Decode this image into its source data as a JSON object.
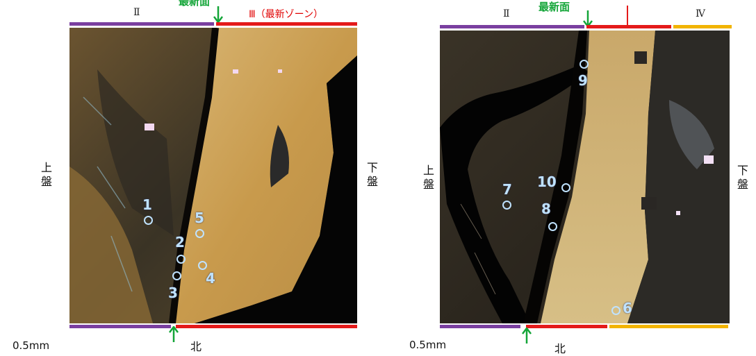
{
  "left_panel": {
    "zone_top_left": "Ⅱ",
    "zone_top_right": "Ⅲ（最新ゾーン）",
    "newest_surface": "最新面",
    "hanging_wall": "上盤",
    "footwall": "下盤",
    "scale": "0.5mm",
    "north": "北",
    "points": [
      "1",
      "2",
      "3",
      "4",
      "5"
    ]
  },
  "right_panel": {
    "zone_top_left": "Ⅱ",
    "zone_top_right": "Ⅳ",
    "newest_surface": "最新面",
    "hanging_wall": "上盤",
    "footwall": "下盤",
    "scale": "0.5mm",
    "north": "北",
    "points": [
      "6",
      "7",
      "8",
      "9",
      "10"
    ]
  },
  "colors": {
    "zone_II": "#7a3fa0",
    "zone_III": "#e41a1a",
    "zone_IV": "#f2b400",
    "arrow": "#13a538",
    "point": "#bfe2ff"
  }
}
